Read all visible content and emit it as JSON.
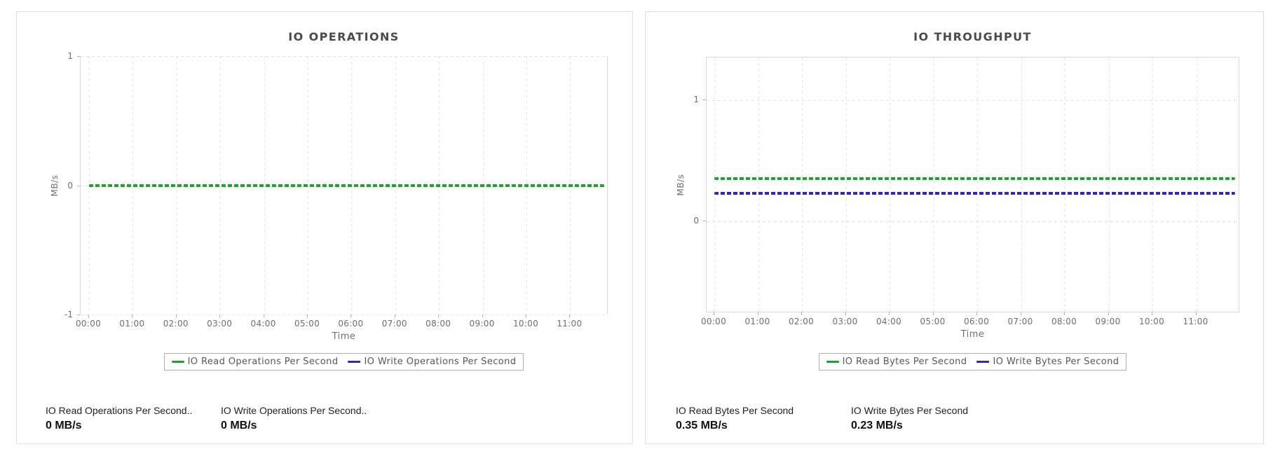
{
  "colors": {
    "read_series": "#1fa32c",
    "write_series": "#2a2ac2",
    "grid": "#e5e5e5",
    "axis_border": "#d9d9d9",
    "tick_text": "#6f6f6f",
    "title_text": "#4a4a4a",
    "legend_text": "#595959",
    "panel_border": "#dedede",
    "stat_label_text": "#222222",
    "stat_value_text": "#101010"
  },
  "chart_data": [
    {
      "type": "line",
      "title": "IO OPERATIONS",
      "xlabel": "Time",
      "ylabel": "MB/s",
      "x_ticks": [
        "00:00",
        "01:00",
        "02:00",
        "03:00",
        "04:00",
        "05:00",
        "06:00",
        "07:00",
        "08:00",
        "09:00",
        "10:00",
        "11:00"
      ],
      "ylim": [
        -1,
        1
      ],
      "y_ticks": [
        1,
        0,
        -1
      ],
      "grid": true,
      "legend_position": "bottom",
      "series": [
        {
          "name": "IO Read Operations Per Second",
          "color": "#1fa32c",
          "value_constant": 0,
          "unit": "MB/s"
        },
        {
          "name": "IO Write Operations Per Second",
          "color": "#2a2ac2",
          "value_constant": 0,
          "unit": "MB/s"
        }
      ]
    },
    {
      "type": "line",
      "title": "IO THROUGHPUT",
      "xlabel": "Time",
      "ylabel": "MB/s",
      "x_ticks": [
        "00:00",
        "01:00",
        "02:00",
        "03:00",
        "04:00",
        "05:00",
        "06:00",
        "07:00",
        "08:00",
        "09:00",
        "10:00",
        "11:00"
      ],
      "ylim": [
        -0.76,
        1.35
      ],
      "y_ticks": [
        1,
        0
      ],
      "grid": true,
      "legend_position": "bottom",
      "series": [
        {
          "name": "IO Read Bytes Per Second",
          "color": "#1fa32c",
          "value_constant": 0.35,
          "unit": "MB/s"
        },
        {
          "name": "IO Write Bytes Per Second",
          "color": "#2a2ac2",
          "value_constant": 0.23,
          "unit": "MB/s"
        }
      ]
    }
  ],
  "panels": [
    {
      "stats": [
        {
          "label": "IO Read Operations Per Second..",
          "value": "0 MB/s"
        },
        {
          "label": "IO Write Operations Per Second..",
          "value": "0 MB/s"
        }
      ]
    },
    {
      "stats": [
        {
          "label": "IO Read Bytes Per Second",
          "value": "0.35 MB/s"
        },
        {
          "label": "IO Write Bytes Per Second",
          "value": "0.23 MB/s"
        }
      ]
    }
  ]
}
